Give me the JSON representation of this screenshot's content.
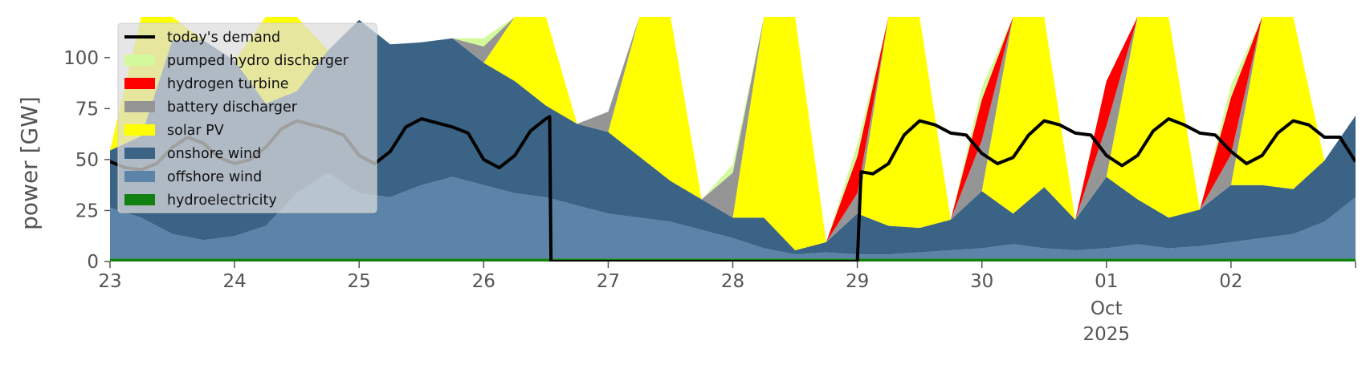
{
  "chart_data": {
    "type": "area",
    "title": "",
    "xlabel": "",
    "ylabel": "power [GW]",
    "ylim": [
      0,
      120
    ],
    "xlim": [
      0,
      10
    ],
    "grid": false,
    "legend_position": "top-left",
    "y_ticks": [
      0,
      25,
      50,
      75,
      100
    ],
    "x_ticks": [
      {
        "x": 0,
        "label": "23"
      },
      {
        "x": 1,
        "label": "24"
      },
      {
        "x": 2,
        "label": "25"
      },
      {
        "x": 3,
        "label": "26"
      },
      {
        "x": 4,
        "label": "27"
      },
      {
        "x": 5,
        "label": "28"
      },
      {
        "x": 6,
        "label": "29"
      },
      {
        "x": 7,
        "label": "30"
      },
      {
        "x": 8,
        "label": "01"
      },
      {
        "x": 9,
        "label": "02"
      },
      {
        "x": 10,
        "label": ""
      }
    ],
    "x_sublabels": {
      "month": "Oct",
      "year": "2025",
      "at": 8
    },
    "x": [
      0,
      0.25,
      0.5,
      0.75,
      1,
      1.25,
      1.5,
      1.75,
      2,
      2.25,
      2.5,
      2.75,
      3,
      3.25,
      3.5,
      3.75,
      4,
      4.25,
      4.5,
      4.75,
      5,
      5.25,
      5.5,
      5.75,
      6,
      6.25,
      6.5,
      6.75,
      7,
      7.25,
      7.5,
      7.75,
      8,
      8.25,
      8.5,
      8.75,
      9,
      9.25,
      9.5,
      9.75,
      10
    ],
    "series": [
      {
        "name": "hydroelectricity",
        "color": "#118011",
        "values": [
          1.5,
          1.5,
          1.5,
          1.5,
          1.5,
          1.5,
          1.5,
          1.5,
          1.5,
          1.5,
          1.5,
          1.5,
          1.5,
          1.5,
          1.5,
          1.5,
          1.5,
          1.5,
          1.5,
          1.5,
          1.5,
          1.5,
          1.5,
          1.5,
          1.5,
          1.5,
          1.5,
          1.5,
          1.5,
          1.5,
          1.5,
          1.5,
          1.5,
          1.5,
          1.5,
          1.5,
          1.5,
          1.5,
          1.5,
          1.5,
          1.5
        ]
      },
      {
        "name": "offshore wind",
        "color": "#5b84a8",
        "values": [
          25,
          20,
          12,
          9,
          11,
          16,
          32,
          42,
          32,
          30,
          36,
          40,
          36,
          32,
          30,
          26,
          22,
          20,
          18,
          14,
          10,
          5,
          2,
          3,
          2,
          2,
          3,
          4,
          5,
          7,
          5,
          4,
          5,
          7,
          5,
          6,
          8,
          10,
          12,
          18,
          30
        ]
      },
      {
        "name": "onshore wind",
        "color": "#3a6386",
        "values": [
          28,
          40,
          95,
          98,
          86,
          60,
          50,
          60,
          85,
          75,
          70,
          68,
          60,
          55,
          45,
          40,
          40,
          30,
          20,
          15,
          10,
          15,
          2,
          5,
          20,
          14,
          12,
          15,
          28,
          15,
          30,
          15,
          35,
          22,
          15,
          18,
          28,
          26,
          22,
          30,
          40
        ]
      },
      {
        "name": "solar PV",
        "color": "#ffff00",
        "values": [
          0,
          60,
          60,
          0,
          0,
          60,
          60,
          0,
          0,
          0,
          0,
          0,
          0,
          90,
          90,
          0,
          0,
          120,
          120,
          0,
          0,
          120,
          120,
          0,
          0,
          120,
          120,
          0,
          0,
          120,
          120,
          0,
          0,
          120,
          120,
          0,
          0,
          120,
          120,
          0,
          0
        ]
      },
      {
        "name": "battery discharger",
        "color": "#959595",
        "values": [
          0,
          0,
          0,
          0,
          0,
          0,
          0,
          0,
          0,
          0,
          0,
          0,
          8,
          5,
          0,
          0,
          10,
          0,
          0,
          0,
          22,
          0,
          0,
          0,
          10,
          0,
          0,
          0,
          25,
          0,
          0,
          0,
          25,
          0,
          0,
          0,
          15,
          0,
          0,
          0,
          0
        ]
      },
      {
        "name": "hydrogen turbine",
        "color": "#ff0000",
        "values": [
          0,
          0,
          0,
          0,
          0,
          0,
          0,
          0,
          0,
          0,
          0,
          0,
          0,
          0,
          0,
          0,
          0,
          0,
          0,
          0,
          0,
          0,
          0,
          0,
          18,
          0,
          0,
          0,
          20,
          0,
          0,
          0,
          22,
          0,
          0,
          0,
          28,
          0,
          0,
          0,
          0
        ]
      },
      {
        "name": "pumped hydro discharger",
        "color": "#d2fa9a",
        "values": [
          0,
          0,
          0,
          0,
          0,
          0,
          0,
          0,
          0,
          0,
          0,
          0,
          4,
          0,
          0,
          0,
          0,
          0,
          0,
          0,
          4,
          0,
          0,
          0,
          6,
          0,
          0,
          0,
          6,
          0,
          0,
          0,
          0,
          0,
          0,
          0,
          6,
          0,
          0,
          0,
          0
        ]
      }
    ],
    "demand": {
      "name": "today's demand",
      "color": "#000000",
      "points": [
        [
          0,
          49
        ],
        [
          0.125,
          46
        ],
        [
          0.25,
          45
        ],
        [
          0.375,
          48
        ],
        [
          0.5,
          56
        ],
        [
          0.625,
          61
        ],
        [
          0.75,
          58
        ],
        [
          0.875,
          51
        ],
        [
          1,
          48
        ],
        [
          1.125,
          50
        ],
        [
          1.25,
          56
        ],
        [
          1.375,
          65
        ],
        [
          1.5,
          69
        ],
        [
          1.625,
          67
        ],
        [
          1.75,
          65
        ],
        [
          1.875,
          62
        ],
        [
          2,
          52
        ],
        [
          2.125,
          48
        ],
        [
          2.25,
          54
        ],
        [
          2.375,
          66
        ],
        [
          2.5,
          70
        ],
        [
          2.625,
          68
        ],
        [
          2.75,
          66
        ],
        [
          2.875,
          63
        ],
        [
          3,
          50
        ],
        [
          3.125,
          46
        ],
        [
          3.25,
          52
        ],
        [
          3.375,
          64
        ],
        [
          3.5,
          70
        ],
        [
          3.53,
          71
        ],
        [
          3.54,
          0
        ],
        [
          6,
          0
        ],
        [
          6.03,
          44
        ],
        [
          6.125,
          43
        ],
        [
          6.25,
          48
        ],
        [
          6.375,
          62
        ],
        [
          6.5,
          69
        ],
        [
          6.625,
          67
        ],
        [
          6.75,
          63
        ],
        [
          6.875,
          62
        ],
        [
          7,
          53
        ],
        [
          7.125,
          48
        ],
        [
          7.25,
          51
        ],
        [
          7.375,
          62
        ],
        [
          7.5,
          69
        ],
        [
          7.625,
          67
        ],
        [
          7.75,
          63
        ],
        [
          7.875,
          62
        ],
        [
          8,
          52
        ],
        [
          8.125,
          47
        ],
        [
          8.25,
          52
        ],
        [
          8.375,
          64
        ],
        [
          8.5,
          70
        ],
        [
          8.625,
          67
        ],
        [
          8.75,
          63
        ],
        [
          8.875,
          62
        ],
        [
          9,
          54
        ],
        [
          9.125,
          48
        ],
        [
          9.25,
          52
        ],
        [
          9.375,
          63
        ],
        [
          9.5,
          69
        ],
        [
          9.625,
          67
        ],
        [
          9.75,
          61
        ],
        [
          9.875,
          61
        ],
        [
          10,
          49
        ]
      ]
    },
    "legend": [
      "today's demand",
      "pumped hydro discharger",
      "hydrogen turbine",
      "battery discharger",
      "solar PV",
      "onshore wind",
      "offshore wind",
      "hydroelectricity"
    ]
  }
}
